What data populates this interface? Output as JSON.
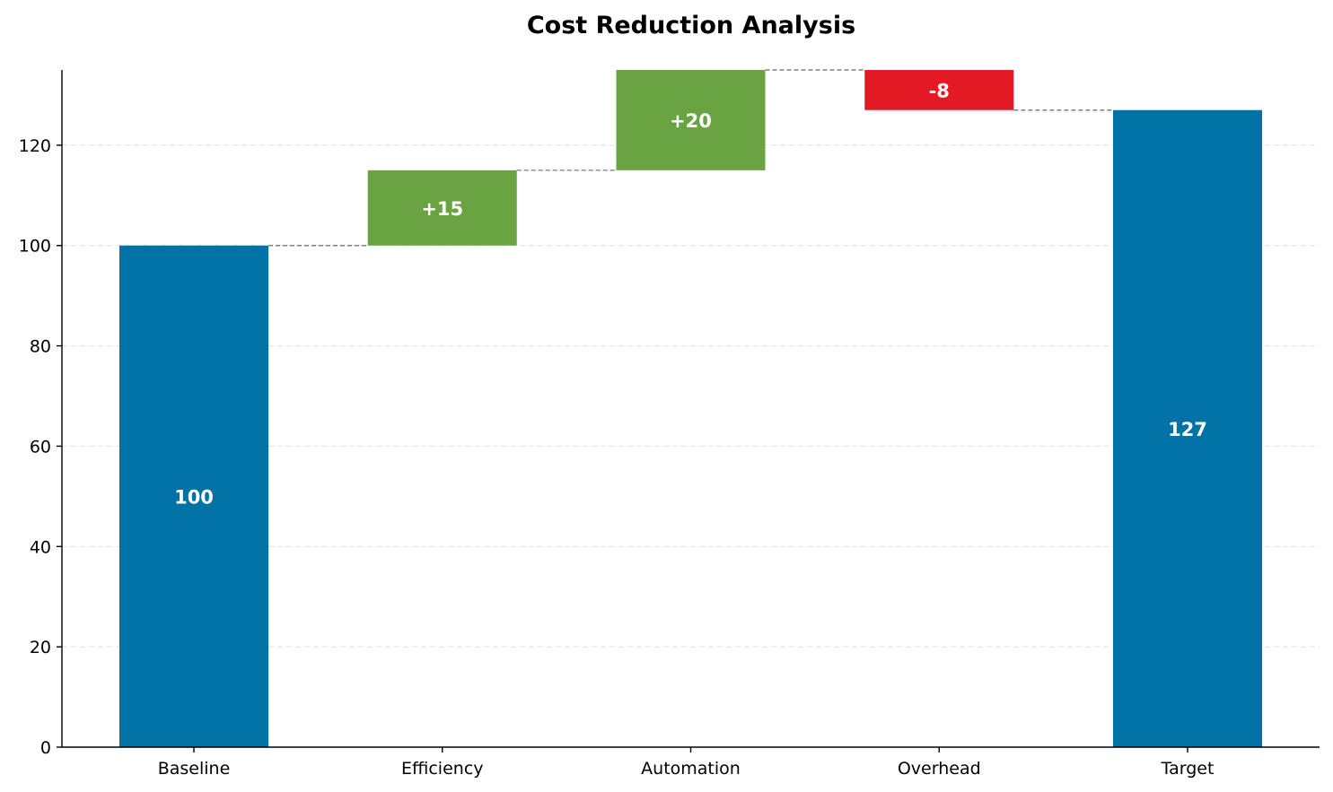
{
  "chart_data": {
    "type": "bar",
    "subtype": "waterfall",
    "title": "Cost Reduction Analysis",
    "xlabel": "",
    "ylabel": "",
    "categories": [
      "Baseline",
      "Efficiency",
      "Automation",
      "Overhead",
      "Target"
    ],
    "values": [
      100,
      15,
      20,
      -8,
      127
    ],
    "kinds": [
      "total",
      "delta",
      "delta",
      "delta",
      "total"
    ],
    "labels": [
      "100",
      "+15",
      "+20",
      "-8",
      "127"
    ],
    "ylim": [
      0,
      135
    ],
    "yticks": [
      0,
      20,
      40,
      60,
      80,
      100,
      120
    ],
    "grid": true,
    "colors": {
      "total": "#0072a6",
      "increase": "#6aa342",
      "decrease": "#e31a23",
      "connector": "#808080",
      "grid": "#e6e6e6"
    }
  }
}
